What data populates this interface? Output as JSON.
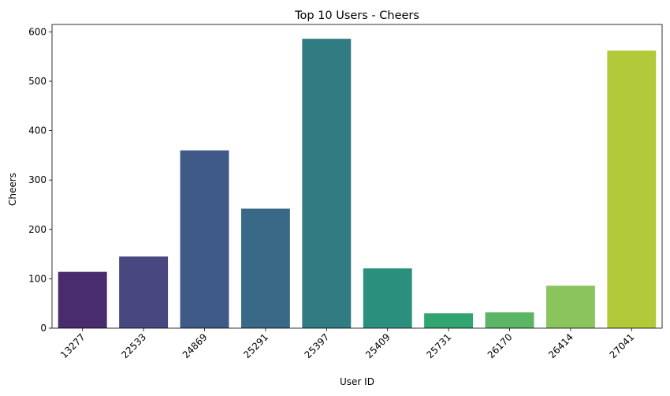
{
  "chart_data": {
    "type": "bar",
    "title": "Top 10 Users - Cheers",
    "xlabel": "User ID",
    "ylabel": "Cheers",
    "categories": [
      "13277",
      "22533",
      "24869",
      "25291",
      "25397",
      "25409",
      "25731",
      "26170",
      "26414",
      "27041"
    ],
    "values": [
      114,
      145,
      360,
      242,
      586,
      121,
      30,
      32,
      86,
      562
    ],
    "ylim": [
      0,
      615
    ],
    "yticks": [
      0,
      100,
      200,
      300,
      400,
      500,
      600
    ],
    "x_tick_rotation": 45,
    "grid": false,
    "legend": "none",
    "colors": [
      "#482c6d",
      "#48477f",
      "#3f5a87",
      "#3a6887",
      "#317b82",
      "#2b8f7e",
      "#31a56f",
      "#5cb564",
      "#8bc35c",
      "#b2c93a"
    ]
  }
}
